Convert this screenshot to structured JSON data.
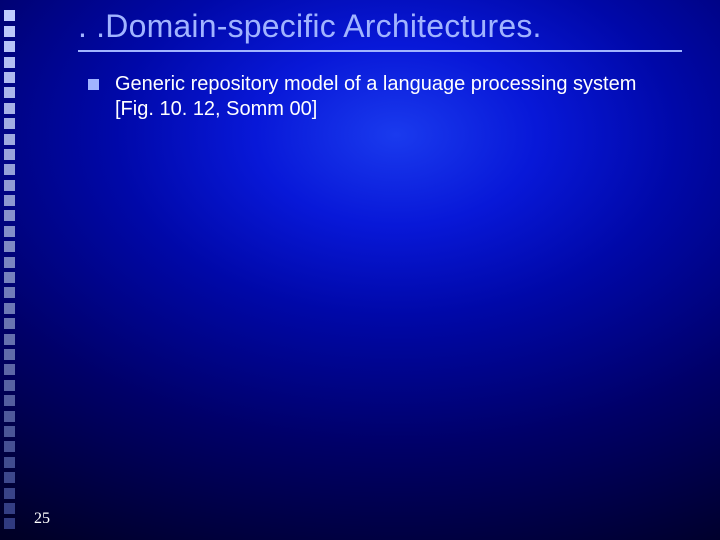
{
  "accent_color": "#a1b4ff",
  "text_color": "#ffffff",
  "underline_color": "#a1b4ff",
  "bullet_marker_color": "#a1b4ff",
  "pagenum_color": "#ffffff",
  "left_strip": {
    "count": 34,
    "square_color_top": "#c0ccff",
    "square_color_bottom": "#303a80"
  },
  "title": ". .Domain-specific Architectures.",
  "bullets": [
    {
      "text": "Generic repository model of a language processing system [Fig. 10. 12, Somm 00]"
    }
  ],
  "page_number": "25"
}
